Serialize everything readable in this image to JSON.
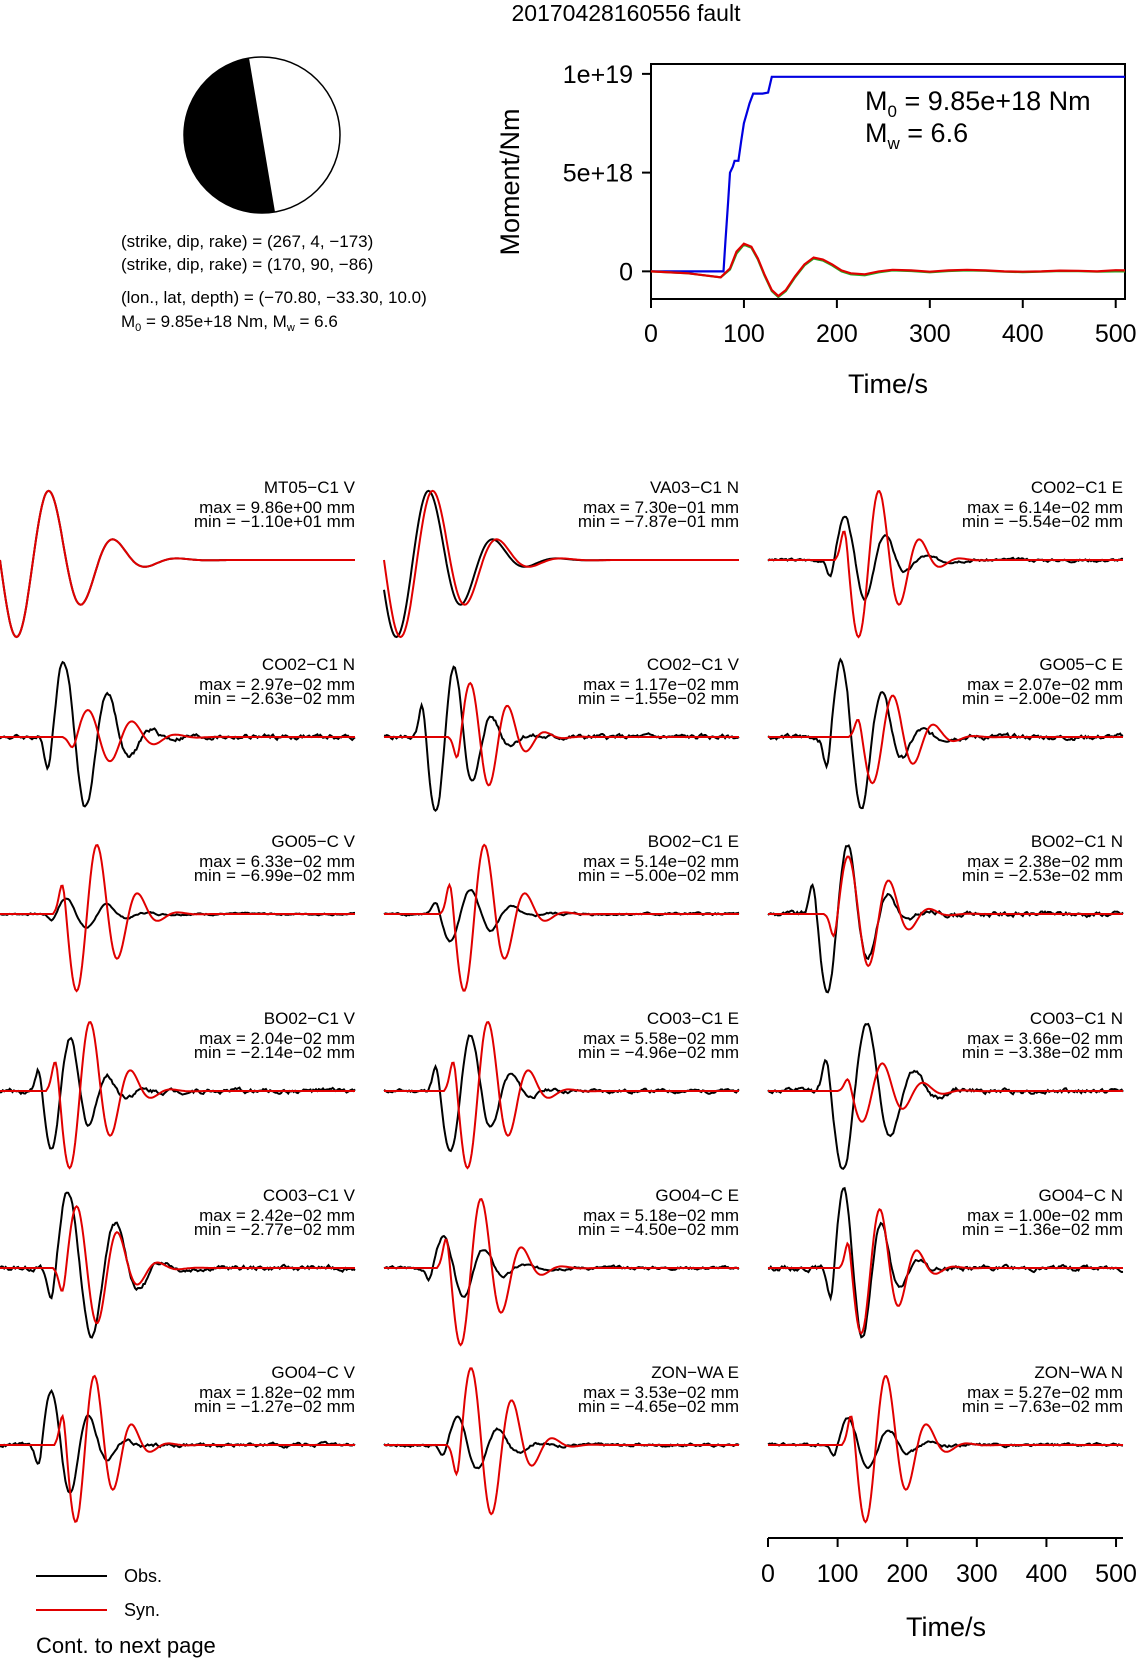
{
  "title": "20170428160556 fault",
  "colors": {
    "obs": "#000000",
    "syn": "#e00000",
    "moment": "#0000e0",
    "stf_green": "#22aa22",
    "beachball_dark": "#000000"
  },
  "mechanism": {
    "line1": "(strike, dip, rake) = (267, 4, −173)",
    "line2": "(strike, dip, rake) = (170, 90, −86)",
    "line3": "(lon., lat, depth) = (−70.80, −33.30, 10.0)",
    "m0_prefix": "M",
    "m0_sub": "0",
    "m0_mid": " = 9.85e+18 Nm, M",
    "mw_sub": "w",
    "mw_suffix": " = 6.6"
  },
  "chart_data": [
    {
      "type": "line",
      "xlabel": "Time/s",
      "ylabel": "Moment/Nm",
      "xlim": [
        0,
        510
      ],
      "ylim": [
        -1400000000000000000,
        10500000000000000000
      ],
      "xticks": [
        "0",
        "100",
        "200",
        "300",
        "400",
        "500"
      ],
      "yticks": [
        "0",
        "5e+18",
        "1e+19"
      ],
      "annotation": {
        "m0_prefix": "M",
        "m0_sub": "0",
        "m0_value": " = 9.85e+18 Nm",
        "mw_prefix": "M",
        "mw_sub": "w",
        "mw_value": " = 6.6"
      },
      "series": [
        {
          "name": "cumulative moment",
          "color": "#0000e0",
          "x": [
            0,
            78,
            80,
            83,
            85,
            88,
            90,
            92,
            94,
            97,
            100,
            103,
            106,
            110,
            115,
            120,
            126,
            130,
            133,
            510
          ],
          "y": [
            0,
            0,
            1500000000000000000,
            3500000000000000000,
            5000000000000000000,
            5300000000000000000,
            5600000000000000000,
            5600000000000000000,
            5600000000000000000,
            6600000000000000000,
            7500000000000000000,
            8000000000000000000,
            8500000000000000000,
            9000000000000000000,
            9000000000000000000,
            9000000000000000000,
            9050000000000000000,
            9850000000000000000,
            9850000000000000000,
            9850000000000000000
          ]
        },
        {
          "name": "moment rate (green)",
          "color": "#22aa22",
          "x": [
            0,
            40,
            75,
            85,
            92,
            100,
            108,
            115,
            122,
            130,
            137,
            145,
            155,
            165,
            175,
            185,
            195,
            205,
            215,
            230,
            245,
            260,
            280,
            300,
            320,
            340,
            360,
            380,
            400,
            420,
            440,
            460,
            480,
            500,
            510
          ],
          "y": [
            0,
            -100000000000000000,
            -300000000000000000,
            100000000000000000,
            900000000000000000,
            1350000000000000000,
            1200000000000000000,
            600000000000000000,
            -200000000000000000,
            -1000000000000000000,
            -1300000000000000000,
            -1000000000000000000,
            -300000000000000000,
            300000000000000000,
            650000000000000000,
            550000000000000000,
            300000000000000000,
            0,
            -150000000000000000,
            -200000000000000000,
            -50000000000000000,
            50000000000000000,
            20000000000000000,
            -50000000000000000,
            20000000000000000,
            50000000000000000,
            30000000000000000,
            -20000000000000000,
            -40000000000000000,
            -10000000000000000,
            20000000000000000,
            10000000000000000,
            -20000000000000000,
            0,
            0
          ]
        },
        {
          "name": "moment rate (red)",
          "color": "#e00000",
          "x": [
            0,
            40,
            75,
            85,
            92,
            100,
            108,
            115,
            122,
            130,
            137,
            145,
            155,
            165,
            175,
            185,
            195,
            205,
            215,
            230,
            245,
            260,
            280,
            300,
            320,
            340,
            360,
            380,
            400,
            420,
            440,
            460,
            480,
            500,
            510
          ],
          "y": [
            0,
            -100000000000000000,
            -300000000000000000,
            150000000000000000,
            1000000000000000000,
            1400000000000000000,
            1250000000000000000,
            650000000000000000,
            -150000000000000000,
            -950000000000000000,
            -1250000000000000000,
            -950000000000000000,
            -250000000000000000,
            350000000000000000,
            700000000000000000,
            600000000000000000,
            350000000000000000,
            50000000000000000,
            -100000000000000000,
            -150000000000000000,
            0,
            80000000000000000,
            50000000000000000,
            -20000000000000000,
            50000000000000000,
            80000000000000000,
            50000000000000000,
            0,
            -20000000000000000,
            0,
            40000000000000000,
            30000000000000000,
            0,
            60000000000000000,
            50000000000000000
          ]
        }
      ]
    },
    {
      "type": "line",
      "xlabel": "Time/s",
      "xlim": [
        0,
        510
      ],
      "xticks": [
        "0",
        "100",
        "200",
        "300",
        "400",
        "500"
      ],
      "legend": {
        "position": "bottom-left",
        "entries": [
          {
            "label": "Obs.",
            "color": "#000000"
          },
          {
            "label": "Syn.",
            "color": "#e00000"
          }
        ]
      },
      "footer": "Cont. to next page",
      "waveforms": [
        {
          "station": "MT05−C1 V",
          "max": "max = 9.86e+00 mm",
          "min": "min = −1.10e+01 mm",
          "obs": {
            "t0": 0,
            "p": 95,
            "pol": -1,
            "lag": 0,
            "amp": 1.0,
            "noise": 0,
            "seed": 1
          },
          "syn": {
            "t0": 0,
            "p": 95,
            "pol": -1,
            "lag": 0,
            "amp": 1.0
          }
        },
        {
          "station": "VA03−C1 N",
          "max": "max = 7.30e−01 mm",
          "min": "min = −7.87e−01 mm",
          "obs": {
            "t0": 0,
            "p": 95,
            "pol": -1,
            "lag": -6,
            "amp": 1.0,
            "noise": 0,
            "seed": 2
          },
          "syn": {
            "t0": 0,
            "p": 95,
            "pol": -1,
            "lag": 0,
            "amp": 1.0
          }
        },
        {
          "station": "CO02−C1 E",
          "max": "max = 6.14e−02 mm",
          "min": "min = −5.54e−02 mm",
          "obs": {
            "t0": 95,
            "p": 60,
            "pol": 1,
            "lag": 0,
            "amp": 0.55,
            "noise": 0.05,
            "seed": 3
          },
          "syn": {
            "t0": 95,
            "p": 60,
            "pol": -1,
            "lag": 20,
            "amp": 1.0
          }
        },
        {
          "station": "CO02−C1 N",
          "max": "max = 2.97e−02 mm",
          "min": "min = −2.63e−02 mm",
          "obs": {
            "t0": 75,
            "p": 65,
            "pol": 1,
            "lag": 0,
            "amp": 1.0,
            "noise": 0.08,
            "seed": 4
          },
          "syn": {
            "t0": 75,
            "p": 65,
            "pol": 1,
            "lag": 35,
            "amp": 0.35
          }
        },
        {
          "station": "CO02−C1 V",
          "max": "max = 1.17e−02 mm",
          "min": "min = −1.55e−02 mm",
          "obs": {
            "t0": 60,
            "p": 55,
            "pol": -1,
            "lag": 0,
            "amp": 1.0,
            "noise": 0.08,
            "seed": 5
          },
          "syn": {
            "t0": 60,
            "p": 55,
            "pol": 1,
            "lag": 50,
            "amp": 0.7
          }
        },
        {
          "station": "GO05−C E",
          "max": "max = 2.07e−02 mm",
          "min": "min = −2.00e−02 mm",
          "obs": {
            "t0": 90,
            "p": 60,
            "pol": 1,
            "lag": 0,
            "amp": 1.0,
            "noise": 0.08,
            "seed": 6
          },
          "syn": {
            "t0": 90,
            "p": 60,
            "pol": -1,
            "lag": 45,
            "amp": 0.6
          }
        },
        {
          "station": "GO05−C V",
          "max": "max = 6.33e−02 mm",
          "min": "min = −6.99e−02 mm",
          "obs": {
            "t0": 80,
            "p": 60,
            "pol": 1,
            "lag": 0,
            "amp": 0.2,
            "noise": 0.03,
            "seed": 7
          },
          "syn": {
            "t0": 80,
            "p": 60,
            "pol": -1,
            "lag": 15,
            "amp": 1.0
          }
        },
        {
          "station": "BO02−C1 E",
          "max": "max = 5.14e−02 mm",
          "min": "min = −5.00e−02 mm",
          "obs": {
            "t0": 80,
            "p": 60,
            "pol": -1,
            "lag": 0,
            "amp": 0.35,
            "noise": 0.04,
            "seed": 8
          },
          "syn": {
            "t0": 80,
            "p": 60,
            "pol": -1,
            "lag": 20,
            "amp": 1.0
          }
        },
        {
          "station": "BO02−C1 N",
          "max": "max = 2.38e−02 mm",
          "min": "min = −2.53e−02 mm",
          "obs": {
            "t0": 70,
            "p": 60,
            "pol": -1,
            "lag": 0,
            "amp": 1.0,
            "noise": 0.08,
            "seed": 9
          },
          "syn": {
            "t0": 70,
            "p": 60,
            "pol": 1,
            "lag": 30,
            "amp": 0.75
          }
        },
        {
          "station": "BO02−C1 V",
          "max": "max = 2.04e−02 mm",
          "min": "min = −2.14e−02 mm",
          "obs": {
            "t0": 60,
            "p": 55,
            "pol": -1,
            "lag": 0,
            "amp": 0.75,
            "noise": 0.08,
            "seed": 10
          },
          "syn": {
            "t0": 60,
            "p": 60,
            "pol": -1,
            "lag": 25,
            "amp": 1.0
          }
        },
        {
          "station": "CO03−C1 E",
          "max": "max = 5.58e−02 mm",
          "min": "min = −4.96e−02 mm",
          "obs": {
            "t0": 80,
            "p": 60,
            "pol": -1,
            "lag": 0,
            "amp": 0.8,
            "noise": 0.06,
            "seed": 11
          },
          "syn": {
            "t0": 80,
            "p": 60,
            "pol": -1,
            "lag": 25,
            "amp": 1.0
          }
        },
        {
          "station": "CO03−C1 N",
          "max": "max = 3.66e−02 mm",
          "min": "min = −3.38e−02 mm",
          "obs": {
            "t0": 90,
            "p": 70,
            "pol": -1,
            "lag": 0,
            "amp": 1.0,
            "noise": 0.08,
            "seed": 12
          },
          "syn": {
            "t0": 90,
            "p": 60,
            "pol": -1,
            "lag": 30,
            "amp": 0.4
          }
        },
        {
          "station": "CO03−C1 V",
          "max": "max = 2.42e−02 mm",
          "min": "min = −2.77e−02 mm",
          "obs": {
            "t0": 80,
            "p": 70,
            "pol": 1,
            "lag": 0,
            "amp": 1.0,
            "noise": 0.08,
            "seed": 13
          },
          "syn": {
            "t0": 80,
            "p": 60,
            "pol": 1,
            "lag": 15,
            "amp": 0.8
          }
        },
        {
          "station": "GO04−C E",
          "max": "max = 5.18e−02 mm",
          "min": "min = −4.50e−02 mm",
          "obs": {
            "t0": 70,
            "p": 60,
            "pol": 1,
            "lag": 0,
            "amp": 0.4,
            "noise": 0.05,
            "seed": 14
          },
          "syn": {
            "t0": 70,
            "p": 60,
            "pol": -1,
            "lag": 25,
            "amp": 1.0
          }
        },
        {
          "station": "GO04−C N",
          "max": "max = 1.00e−02 mm",
          "min": "min = −1.36e−02 mm",
          "obs": {
            "t0": 95,
            "p": 55,
            "pol": 1,
            "lag": 0,
            "amp": 1.0,
            "noise": 0.08,
            "seed": 15
          },
          "syn": {
            "t0": 95,
            "p": 55,
            "pol": -1,
            "lag": 25,
            "amp": 0.85
          }
        },
        {
          "station": "GO04−C V",
          "max": "max = 1.82e−02 mm",
          "min": "min = −1.27e−02 mm",
          "obs": {
            "t0": 60,
            "p": 55,
            "pol": 1,
            "lag": 0,
            "amp": 0.7,
            "noise": 0.06,
            "seed": 16
          },
          "syn": {
            "t0": 60,
            "p": 55,
            "pol": -1,
            "lag": 35,
            "amp": 1.0
          }
        },
        {
          "station": "ZON−WA E",
          "max": "max = 3.53e−02 mm",
          "min": "min = −4.65e−02 mm",
          "obs": {
            "t0": 90,
            "p": 60,
            "pol": 1,
            "lag": 0,
            "amp": 0.35,
            "noise": 0.05,
            "seed": 17
          },
          "syn": {
            "t0": 90,
            "p": 60,
            "pol": 1,
            "lag": 20,
            "amp": 1.0
          }
        },
        {
          "station": "ZON−WA N",
          "max": "max = 5.27e−02 mm",
          "min": "min = −7.63e−02 mm",
          "obs": {
            "t0": 100,
            "p": 60,
            "pol": 1,
            "lag": 0,
            "amp": 0.35,
            "noise": 0.05,
            "seed": 18
          },
          "syn": {
            "t0": 100,
            "p": 60,
            "pol": -1,
            "lag": 25,
            "amp": 1.0
          }
        }
      ]
    }
  ]
}
